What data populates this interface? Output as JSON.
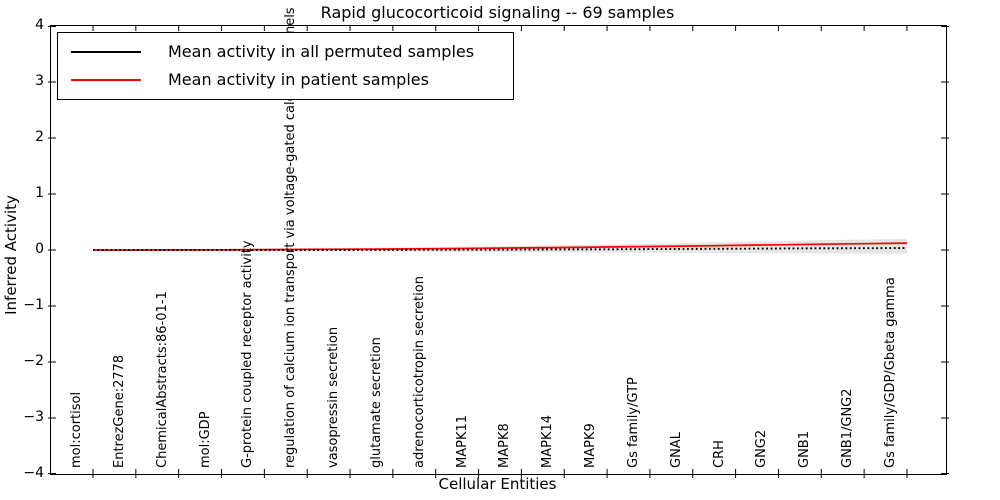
{
  "title": "Rapid glucocorticoid signaling -- 69 samples",
  "axes": {
    "xlabel": "Cellular Entities",
    "ylabel": "Inferred Activity",
    "yticklabels": [
      "4",
      "3",
      "2",
      "1",
      "0",
      "−1",
      "−2",
      "−3",
      "−4"
    ]
  },
  "legend": {
    "entries": [
      {
        "label": "Mean activity in all permuted samples",
        "color": "#000000"
      },
      {
        "label": "Mean activity in patient samples",
        "color": "#ff0000"
      }
    ]
  },
  "chart_data": {
    "type": "line",
    "title": "Rapid glucocorticoid signaling -- 69 samples",
    "xlabel": "Cellular Entities",
    "ylabel": "Inferred Activity",
    "ylim": [
      -4,
      4
    ],
    "grid": false,
    "legend_position": "upper left",
    "categories": [
      "mol:cortisol",
      "EntrezGene:2778",
      "ChemicalAbstracts:86-01-1",
      "mol:GDP",
      "G-protein coupled receptor activity",
      "regulation of calcium ion transport via voltage-gated calcium channels",
      "vasopressin secretion",
      "glutamate secretion",
      "adrenocorticotropin secretion",
      "MAPK11",
      "MAPK8",
      "MAPK14",
      "MAPK9",
      "Gs family/GTP",
      "GNAL",
      "CRH",
      "GNG2",
      "GNB1",
      "GNB1/GNG2",
      "Gs family/GDP/Gbeta gamma"
    ],
    "series": [
      {
        "name": "Mean activity in all permuted samples",
        "color": "#000000",
        "style": "dotted",
        "values": [
          0,
          0,
          0,
          0,
          0,
          0,
          0,
          0.002,
          0.004,
          0.006,
          0.008,
          0.01,
          0.013,
          0.016,
          0.02,
          0.023,
          0.027,
          0.03,
          0.033,
          0.036
        ]
      },
      {
        "name": "Mean activity in patient samples",
        "color": "#ff0000",
        "style": "solid",
        "values": [
          0,
          0,
          0.002,
          0.004,
          0.007,
          0.01,
          0.014,
          0.018,
          0.024,
          0.03,
          0.037,
          0.045,
          0.053,
          0.062,
          0.072,
          0.082,
          0.092,
          0.103,
          0.113,
          0.123
        ]
      }
    ],
    "band": {
      "name": "permuted sample activity spread",
      "color": "#e5e5e5",
      "upper": [
        0.008,
        0.01,
        0.013,
        0.017,
        0.022,
        0.028,
        0.035,
        0.043,
        0.052,
        0.062,
        0.073,
        0.085,
        0.098,
        0.112,
        0.127,
        0.143,
        0.158,
        0.173,
        0.188,
        0.2
      ],
      "lower": [
        -0.008,
        -0.009,
        -0.011,
        -0.013,
        -0.016,
        -0.019,
        -0.022,
        -0.026,
        -0.03,
        -0.034,
        -0.038,
        -0.042,
        -0.046,
        -0.05,
        -0.053,
        -0.056,
        -0.059,
        -0.061,
        -0.063,
        -0.065
      ]
    }
  }
}
